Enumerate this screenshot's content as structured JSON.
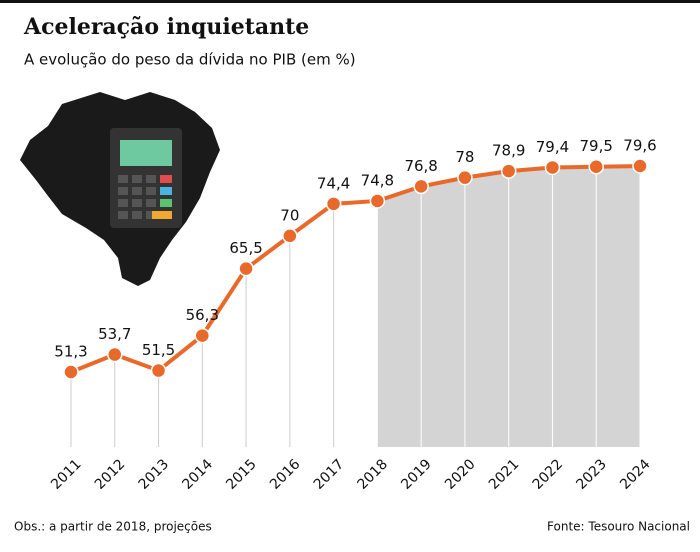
{
  "chart_data": {
    "type": "line",
    "title": "Aceleração inquietante",
    "subtitle": "A evolução do peso da dívida no PIB (em %)",
    "categories": [
      "2011",
      "2012",
      "2013",
      "2014",
      "2015",
      "2016",
      "2017",
      "2018",
      "2019",
      "2020",
      "2021",
      "2022",
      "2023",
      "2024"
    ],
    "values": [
      51.3,
      53.7,
      51.5,
      56.3,
      65.5,
      70,
      74.4,
      74.8,
      76.8,
      78,
      78.9,
      79.4,
      79.5,
      79.6
    ],
    "value_labels": [
      "51,3",
      "53,7",
      "51,5",
      "56,3",
      "65,5",
      "70",
      "74,4",
      "74,8",
      "76,8",
      "78",
      "78,9",
      "79,4",
      "79,5",
      "79,6"
    ],
    "color": "#e8692a",
    "shaded_from": "2018",
    "note": "Obs.: a partir de 2018, projeções",
    "source": "Fonte: Tesouro Nacional"
  }
}
